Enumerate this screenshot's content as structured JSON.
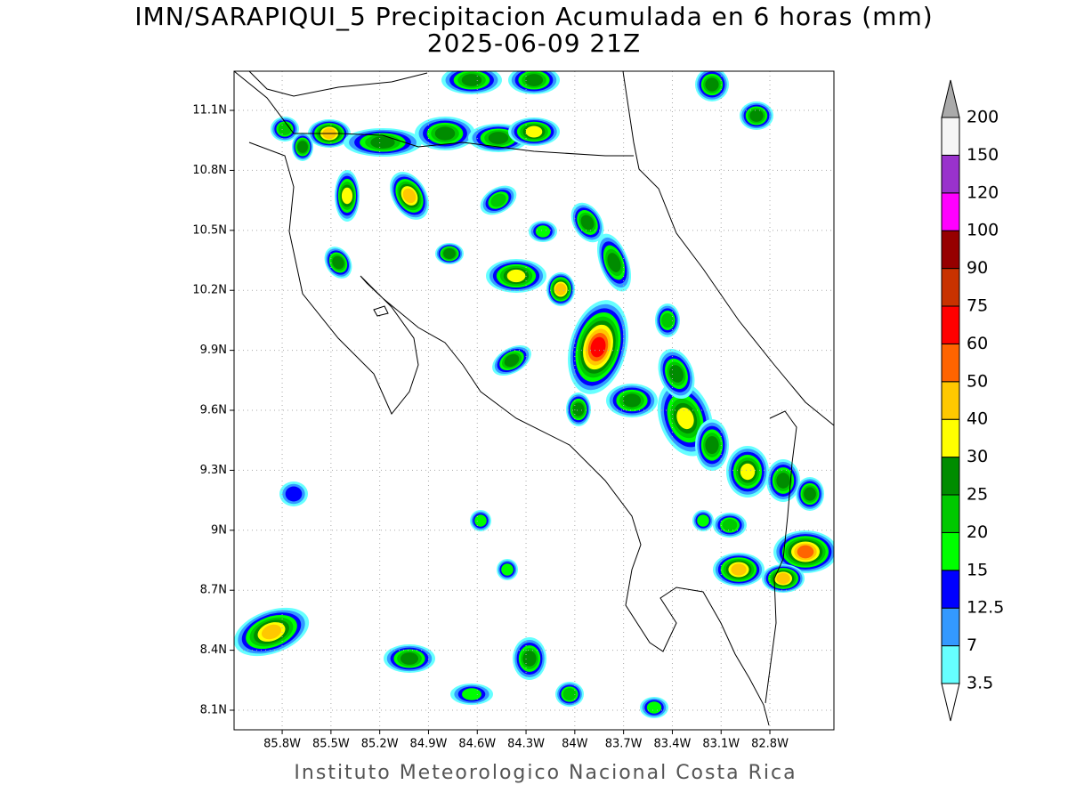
{
  "map": {
    "title": "IMN/SARAPIQUI_5 Precipitacion Acumulada en 6 horas (mm)",
    "subtitle": "2025-06-09 21Z",
    "footer": "Instituto Meteorologico Nacional Costa Rica",
    "latlim": [
      8.002,
      11.296
    ],
    "lonlim": [
      -86.096,
      -82.406
    ],
    "lat_ticks": [
      {
        "value": 11.1,
        "label": "11.1N"
      },
      {
        "value": 10.8,
        "label": "10.8N"
      },
      {
        "value": 10.5,
        "label": "10.5N"
      },
      {
        "value": 10.2,
        "label": "10.2N"
      },
      {
        "value": 9.9,
        "label": "9.9N"
      },
      {
        "value": 9.6,
        "label": "9.6N"
      },
      {
        "value": 9.3,
        "label": "9.3N"
      },
      {
        "value": 9,
        "label": "9N"
      },
      {
        "value": 8.7,
        "label": "8.7N"
      },
      {
        "value": 8.4,
        "label": "8.4N"
      },
      {
        "value": 8.1,
        "label": "8.1N"
      }
    ],
    "lon_ticks": [
      {
        "value": -85.8,
        "label": "85.8W"
      },
      {
        "value": -85.5,
        "label": "85.5W"
      },
      {
        "value": -85.2,
        "label": "85.2W"
      },
      {
        "value": -84.9,
        "label": "84.9W"
      },
      {
        "value": -84.6,
        "label": "84.6W"
      },
      {
        "value": -84.3,
        "label": "84.3W"
      },
      {
        "value": -84,
        "label": "84W"
      },
      {
        "value": -83.7,
        "label": "83.7W"
      },
      {
        "value": -83.4,
        "label": "83.4W"
      },
      {
        "value": -83.1,
        "label": "83.1W"
      },
      {
        "value": -82.8,
        "label": "82.8W"
      }
    ],
    "colorbar": {
      "levels": [
        3.5,
        7,
        12.5,
        15,
        20,
        25,
        30,
        40,
        50,
        60,
        75,
        90,
        100,
        120,
        150,
        200
      ],
      "colors": [
        "#66ffff",
        "#3399ff",
        "#0000ff",
        "#00ff00",
        "#00c800",
        "#008c00",
        "#ffff00",
        "#ffc800",
        "#ff6400",
        "#ff0000",
        "#c83200",
        "#960000",
        "#ff00ff",
        "#9932cc",
        "#f5f5f5"
      ],
      "over_color": "#aaaaaa",
      "under_color": "#ffffff"
    }
  }
}
